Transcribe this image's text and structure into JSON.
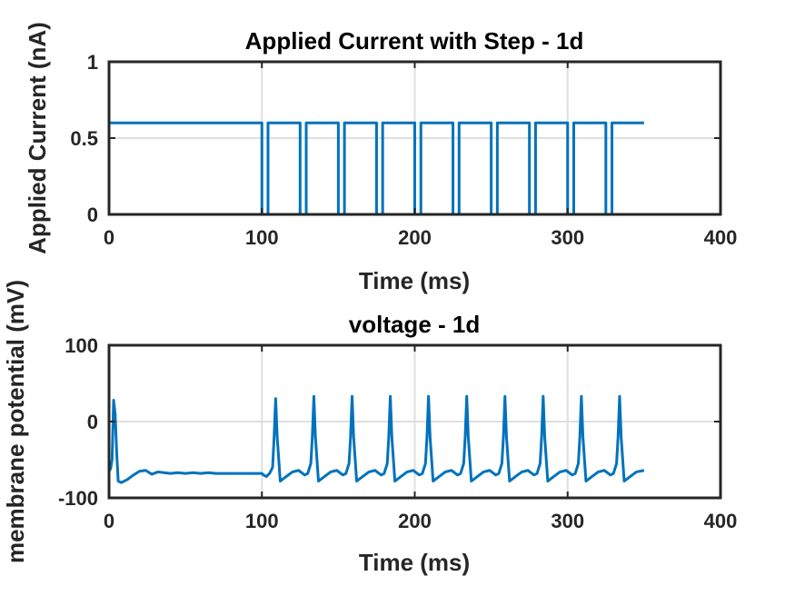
{
  "chart_data": [
    {
      "type": "line",
      "title": "Applied Current with Step - 1d",
      "xlabel": "Time (ms)",
      "ylabel": "Applied Current (nA)",
      "xlim": [
        0,
        400
      ],
      "ylim": [
        0,
        1
      ],
      "xticks": [
        0,
        100,
        200,
        300,
        400
      ],
      "xtick_labels": [
        "0",
        "100",
        "200",
        "300",
        "400"
      ],
      "yticks": [
        0,
        0.5,
        1
      ],
      "ytick_labels": [
        "0",
        "0.5",
        "1"
      ],
      "grid": true,
      "color": "#0072bd",
      "series": [
        {
          "x": [
            0,
            100,
            100,
            104,
            104,
            125,
            125,
            129,
            129,
            150,
            150,
            154,
            154,
            175,
            175,
            179,
            179,
            200,
            200,
            204,
            204,
            225,
            225,
            229,
            229,
            250,
            250,
            254,
            254,
            275,
            275,
            279,
            279,
            300,
            300,
            304,
            304,
            325,
            325,
            329,
            329,
            350
          ],
          "y": [
            0.6,
            0.6,
            0,
            0,
            0.6,
            0.6,
            0,
            0,
            0.6,
            0.6,
            0,
            0,
            0.6,
            0.6,
            0,
            0,
            0.6,
            0.6,
            0,
            0,
            0.6,
            0.6,
            0,
            0,
            0.6,
            0.6,
            0,
            0,
            0.6,
            0.6,
            0,
            0,
            0.6,
            0.6,
            0,
            0,
            0.6,
            0.6,
            0,
            0,
            0.6,
            0.6
          ]
        }
      ]
    },
    {
      "type": "line",
      "title": "voltage - 1d",
      "xlabel": "Time (ms)",
      "ylabel": "membrane potential (mV)",
      "xlim": [
        0,
        400
      ],
      "ylim": [
        -100,
        100
      ],
      "xticks": [
        0,
        100,
        200,
        300,
        400
      ],
      "xtick_labels": [
        "0",
        "100",
        "200",
        "300",
        "400"
      ],
      "yticks": [
        -100,
        0,
        100
      ],
      "ytick_labels": [
        "-100",
        "0",
        "100"
      ],
      "grid": true,
      "color": "#0072bd",
      "series": [
        {
          "x": [
            0,
            1,
            2,
            3,
            4,
            5,
            6,
            8,
            12,
            16,
            20,
            24,
            28,
            32,
            36,
            40,
            45,
            50,
            55,
            60,
            65,
            70,
            80,
            90,
            100,
            101,
            103,
            105,
            107,
            108,
            109,
            110,
            112,
            116,
            120,
            124,
            128,
            130,
            132,
            133,
            134,
            135,
            137,
            141,
            145,
            149,
            153,
            155,
            157,
            158,
            159,
            160,
            162,
            166,
            170,
            174,
            178,
            180,
            182,
            183,
            184,
            185,
            187,
            191,
            195,
            199,
            203,
            205,
            207,
            208,
            209,
            210,
            212,
            216,
            220,
            224,
            228,
            230,
            232,
            233,
            234,
            235,
            237,
            241,
            245,
            249,
            253,
            255,
            257,
            258,
            259,
            260,
            262,
            266,
            270,
            274,
            278,
            280,
            282,
            283,
            284,
            285,
            287,
            291,
            295,
            299,
            303,
            305,
            307,
            308,
            309,
            310,
            312,
            316,
            320,
            324,
            328,
            330,
            332,
            333,
            334,
            335,
            337,
            341,
            345,
            350
          ],
          "y": [
            -65,
            -62,
            -50,
            28,
            10,
            -40,
            -78,
            -80,
            -76,
            -70,
            -65,
            -64,
            -69,
            -66,
            -67,
            -68,
            -67,
            -68,
            -67,
            -68,
            -67,
            -68,
            -68,
            -68,
            -68,
            -70,
            -72,
            -68,
            -60,
            -20,
            30,
            -20,
            -78,
            -72,
            -66,
            -64,
            -70,
            -68,
            -55,
            -20,
            33,
            -20,
            -78,
            -72,
            -66,
            -64,
            -70,
            -68,
            -55,
            -20,
            33,
            -20,
            -78,
            -72,
            -66,
            -64,
            -70,
            -68,
            -55,
            -20,
            33,
            -20,
            -78,
            -72,
            -66,
            -64,
            -70,
            -68,
            -55,
            -20,
            33,
            -20,
            -78,
            -72,
            -66,
            -64,
            -70,
            -68,
            -55,
            -20,
            33,
            -20,
            -78,
            -72,
            -66,
            -64,
            -70,
            -68,
            -55,
            -20,
            33,
            -20,
            -78,
            -72,
            -66,
            -64,
            -70,
            -68,
            -55,
            -20,
            33,
            -20,
            -78,
            -72,
            -66,
            -64,
            -70,
            -68,
            -55,
            -20,
            33,
            -20,
            -78,
            -72,
            -66,
            -64,
            -70,
            -68,
            -55,
            -20,
            33,
            -20,
            -78,
            -72,
            -66,
            -64
          ]
        }
      ]
    }
  ]
}
